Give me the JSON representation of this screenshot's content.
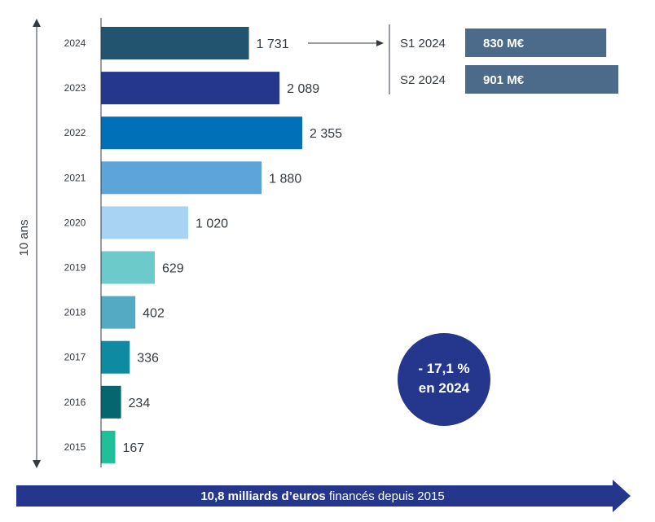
{
  "chart_data": {
    "type": "bar",
    "orientation": "horizontal",
    "categories": [
      "2024",
      "2023",
      "2022",
      "2021",
      "2020",
      "2019",
      "2018",
      "2017",
      "2016",
      "2015"
    ],
    "values": [
      1731,
      2089,
      2355,
      1880,
      1020,
      629,
      402,
      336,
      234,
      167
    ],
    "value_labels": [
      "1 731",
      "2 089",
      "2 355",
      "1 880",
      "1 020",
      "629",
      "402",
      "336",
      "234",
      "167"
    ],
    "colors": [
      "#23546f",
      "#24378c",
      "#0070b8",
      "#5da4d9",
      "#a9d3f2",
      "#6dcaca",
      "#53aac2",
      "#0e8ba3",
      "#066670",
      "#1fbf9a"
    ],
    "xlim": [
      0,
      2355
    ],
    "y_axis_label": "10 ans",
    "breakdown": {
      "year": "2024",
      "items": [
        {
          "label": "S1 2024",
          "value": 830,
          "value_label": "830 M€"
        },
        {
          "label": "S2 2024",
          "value": 901,
          "value_label": "901 M€"
        }
      ],
      "color": "#4c6a8a"
    },
    "badge": {
      "line1": "- 17,1 %",
      "line2": "en 2024",
      "color": "#24378c"
    },
    "footer": {
      "bold": "10,8 milliards d’euros",
      "rest": " financés depuis 2015",
      "color": "#24378c"
    }
  }
}
